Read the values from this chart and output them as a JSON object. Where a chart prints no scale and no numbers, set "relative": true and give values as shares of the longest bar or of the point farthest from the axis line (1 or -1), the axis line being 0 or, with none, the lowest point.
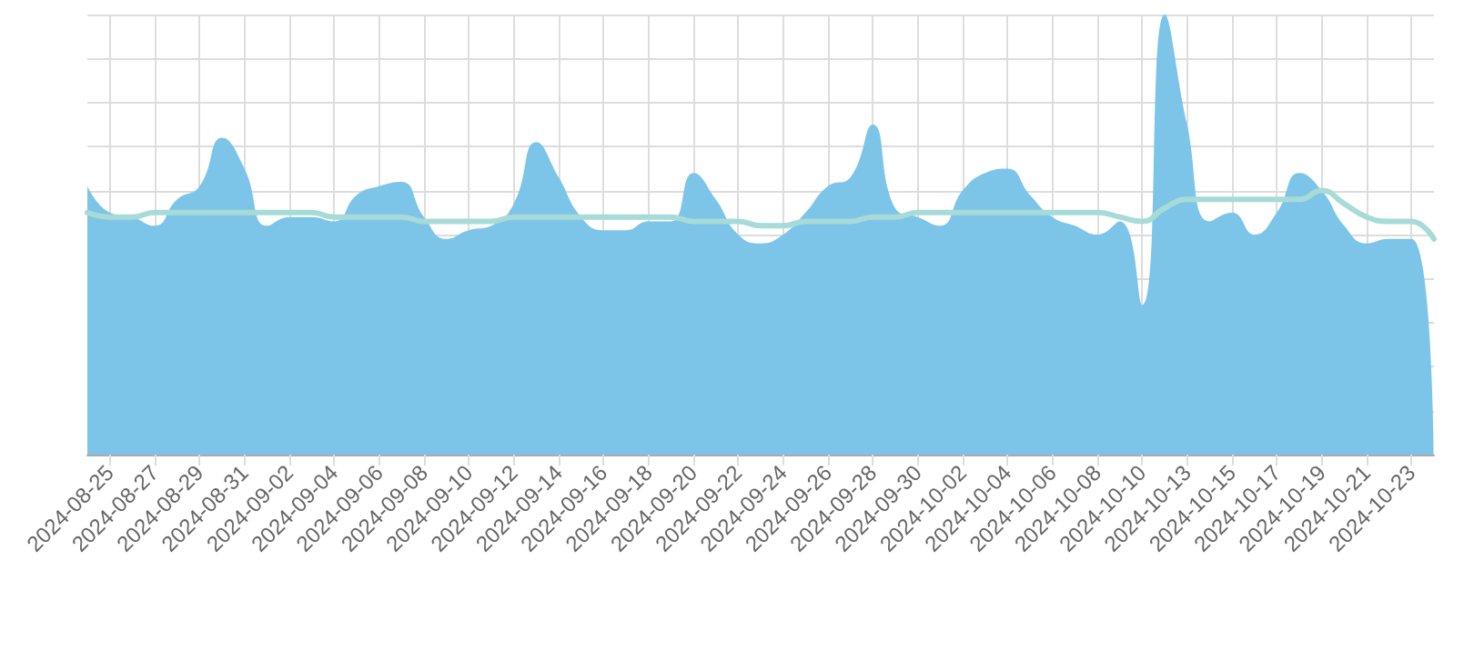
{
  "chart_data": {
    "type": "area",
    "relative": true,
    "grid": true,
    "categories": [
      null,
      "2024-08-25",
      null,
      "2024-08-27",
      null,
      "2024-08-29",
      null,
      "2024-08-31",
      null,
      "2024-09-02",
      null,
      "2024-09-04",
      null,
      "2024-09-06",
      null,
      "2024-09-08",
      null,
      "2024-09-10",
      null,
      "2024-09-12",
      null,
      "2024-09-14",
      null,
      "2024-09-16",
      null,
      "2024-09-18",
      null,
      "2024-09-20",
      null,
      "2024-09-22",
      null,
      "2024-09-24",
      null,
      "2024-09-26",
      null,
      "2024-09-28",
      null,
      "2024-09-30",
      null,
      "2024-10-02",
      null,
      "2024-10-04",
      null,
      "2024-10-06",
      null,
      "2024-10-08",
      null,
      "2024-10-10",
      null,
      "2024-10-13",
      null,
      "2024-10-15",
      null,
      "2024-10-17",
      null,
      "2024-10-19",
      null,
      "2024-10-21",
      null,
      "2024-10-23",
      null
    ],
    "series": [
      {
        "color": "#7dc5e8",
        "values": [
          0.61,
          0.55,
          0.54,
          0.52,
          0.58,
          0.61,
          0.72,
          0.65,
          0.52,
          0.54,
          0.54,
          0.53,
          0.59,
          0.61,
          0.62,
          0.54,
          0.49,
          0.51,
          0.52,
          0.57,
          0.71,
          0.63,
          0.54,
          0.51,
          0.51,
          0.53,
          0.53,
          0.64,
          0.58,
          0.5,
          0.48,
          0.5,
          0.55,
          0.61,
          0.63,
          0.75,
          0.56,
          0.54,
          0.52,
          0.6,
          0.64,
          0.65,
          0.59,
          0.54,
          0.52,
          0.5,
          0.53,
          0.34,
          1.0,
          0.75,
          0.53,
          0.55,
          0.5,
          0.55,
          0.64,
          0.6,
          0.52,
          0.48,
          0.49,
          0.49,
          0.0
        ]
      },
      {
        "type": "line",
        "color": "#a6dbd8",
        "values": [
          0.55,
          0.54,
          0.54,
          0.55,
          0.55,
          0.55,
          0.55,
          0.55,
          0.55,
          0.55,
          0.55,
          0.54,
          0.54,
          0.54,
          0.54,
          0.53,
          0.53,
          0.53,
          0.53,
          0.54,
          0.54,
          0.54,
          0.54,
          0.54,
          0.54,
          0.54,
          0.54,
          0.53,
          0.53,
          0.53,
          0.52,
          0.52,
          0.53,
          0.53,
          0.53,
          0.54,
          0.54,
          0.55,
          0.55,
          0.55,
          0.55,
          0.55,
          0.55,
          0.55,
          0.55,
          0.55,
          0.54,
          0.53,
          0.56,
          0.58,
          0.58,
          0.58,
          0.58,
          0.58,
          0.58,
          0.6,
          0.57,
          0.54,
          0.53,
          0.53,
          0.49
        ]
      }
    ]
  }
}
